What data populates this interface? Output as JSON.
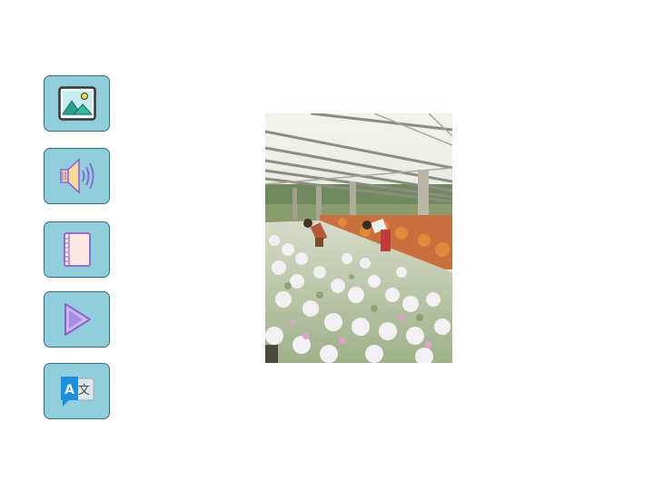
{
  "toolbar": {
    "buttons": [
      {
        "id": "image",
        "icon": "image-icon"
      },
      {
        "id": "audio",
        "icon": "speaker-icon"
      },
      {
        "id": "book",
        "icon": "notebook-icon"
      },
      {
        "id": "play",
        "icon": "play-icon"
      },
      {
        "id": "translate",
        "icon": "translate-icon",
        "glyph_a": "A",
        "glyph_b": "文"
      }
    ]
  },
  "main": {
    "photo": {
      "subject": "greenhouse-flowers-image"
    }
  },
  "colors": {
    "button_fill": "#92cddc",
    "button_border": "#2f6f82",
    "icon_purple": "#8a63d2",
    "icon_blue": "#1d8fe0"
  }
}
